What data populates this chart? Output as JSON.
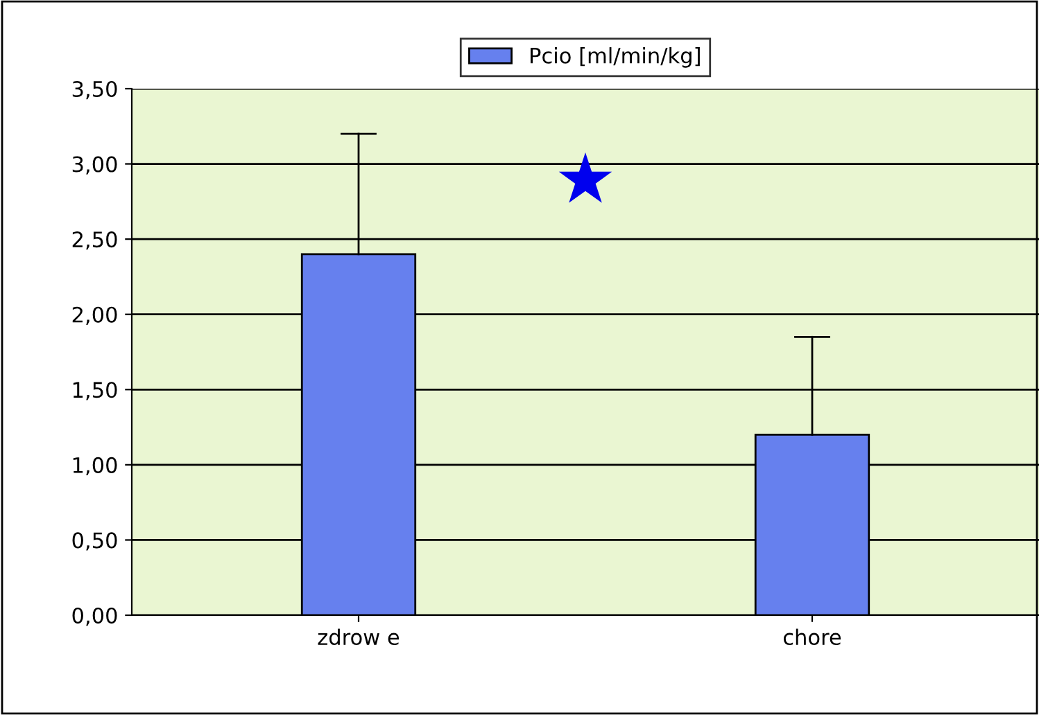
{
  "chart_data": {
    "type": "bar",
    "categories": [
      "zdrow e",
      "chore"
    ],
    "series": [
      {
        "name": "Pcio [ml/min/kg]",
        "color": "#6680ee",
        "values": [
          2.4,
          1.2
        ],
        "errors": [
          [
            2.4,
            3.2
          ],
          [
            1.2,
            1.85
          ]
        ]
      }
    ],
    "ylim": [
      0,
      3.5
    ],
    "yticks": [
      {
        "value": 0,
        "label": "0,00"
      },
      {
        "value": 0.5,
        "label": "0,50"
      },
      {
        "value": 1,
        "label": "1,00"
      },
      {
        "value": 1.5,
        "label": "1,50"
      },
      {
        "value": 2,
        "label": "2,00"
      },
      {
        "value": 2.5,
        "label": "2,50"
      },
      {
        "value": 3,
        "label": "3,00"
      },
      {
        "value": 3.5,
        "label": "3,50"
      }
    ],
    "grid": "y",
    "legend": "top",
    "annotations": [
      "★"
    ]
  }
}
